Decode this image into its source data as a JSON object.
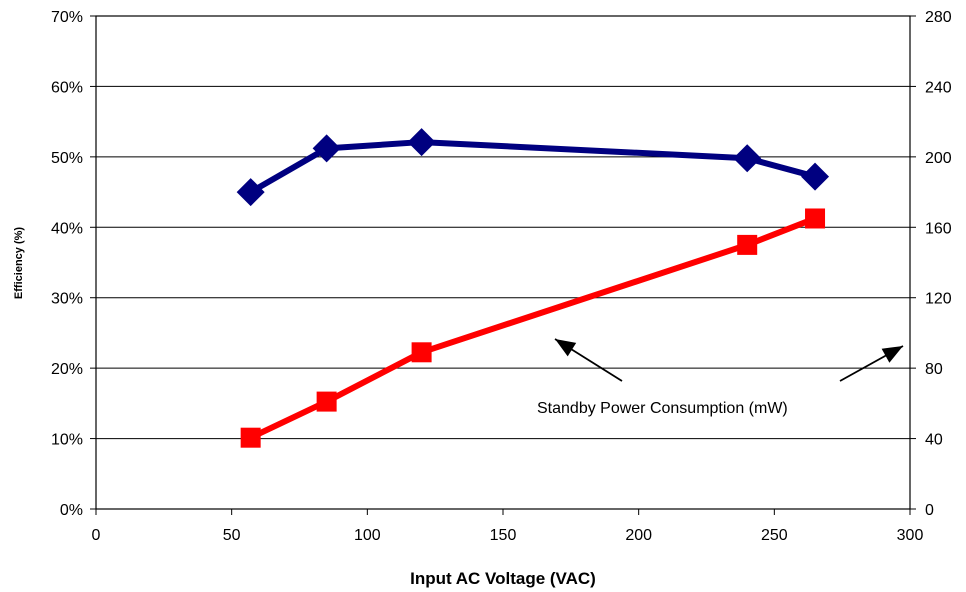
{
  "chart_data": {
    "type": "line",
    "title": "",
    "xlabel": "Input AC Voltage (VAC)",
    "ylabel": "Efficiency (%)",
    "y2label": "",
    "xlim": [
      0,
      300
    ],
    "ylim": [
      0,
      70
    ],
    "y2lim": [
      0,
      280
    ],
    "x_ticks": [
      0,
      50,
      100,
      150,
      200,
      250,
      300
    ],
    "y_ticks": [
      "0%",
      "10%",
      "20%",
      "30%",
      "40%",
      "50%",
      "60%",
      "70%"
    ],
    "y2_ticks": [
      0,
      40,
      80,
      120,
      160,
      200,
      240,
      280
    ],
    "grid": true,
    "legend": "none",
    "series": [
      {
        "axis": "left",
        "color": "#000080",
        "marker": "diamond",
        "x": [
          57,
          85,
          120,
          240,
          265
        ],
        "values": [
          45.0,
          51.2,
          52.1,
          49.8,
          47.2
        ]
      },
      {
        "axis": "right",
        "color": "#ff0000",
        "marker": "square",
        "x": [
          57,
          85,
          120,
          240,
          265
        ],
        "values": [
          40.5,
          61,
          89,
          150,
          165
        ]
      }
    ],
    "annotations": [
      {
        "text": "Standby Power Consumption (mW)"
      }
    ]
  }
}
